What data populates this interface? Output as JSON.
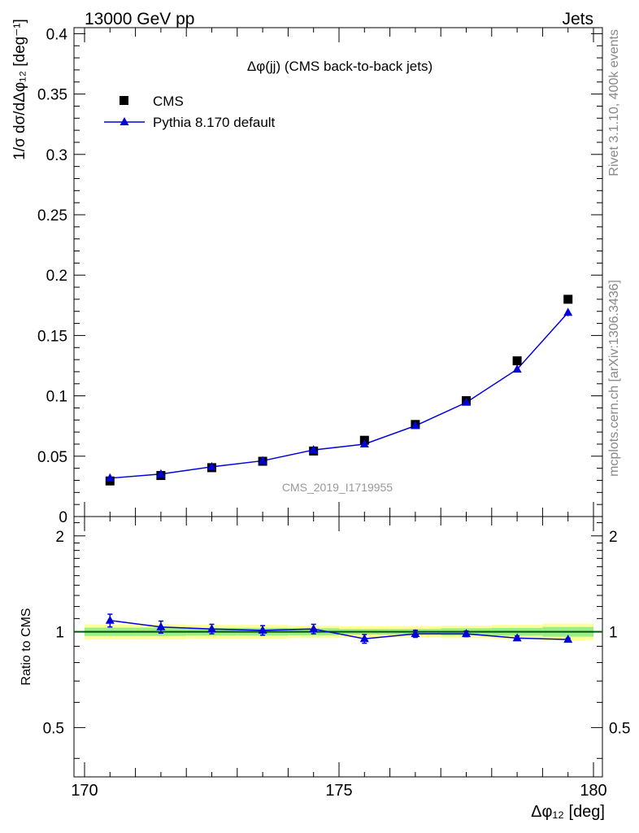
{
  "header": {
    "left": "13000 GeV pp",
    "right": "Jets"
  },
  "side": {
    "rivet": "Rivet 3.1.10,  400k events",
    "mcplots": "mcplots.cern.ch [arXiv:1306.3436]"
  },
  "watermark": "CMS_2019_I1719955",
  "colors": {
    "data": "#000000",
    "mc": "#0000dd",
    "band_outer": "#ffff99",
    "band_inner": "#99ee88",
    "ref_line": "#005500"
  },
  "chart_data": [
    {
      "type": "scatter",
      "title": "Δφ(jj) (CMS back-to-back jets)",
      "ylabel": "1/σ dσ/dΔφ₁₂ [deg⁻¹]",
      "xlabel": "Δφ₁₂ [deg]",
      "xlim": [
        170,
        180
      ],
      "ylim": [
        0,
        0.405
      ],
      "y_ticks": [
        "0",
        "0.05",
        "0.1",
        "0.15",
        "0.2",
        "0.25",
        "0.3",
        "0.35",
        "0.4"
      ],
      "x": [
        170.5,
        171.5,
        172.5,
        173.5,
        174.5,
        175.5,
        176.5,
        177.5,
        178.5,
        179.5
      ],
      "legend": [
        "CMS",
        "Pythia 8.170 default"
      ],
      "series": [
        {
          "name": "CMS",
          "marker": "square",
          "values": [
            0.0295,
            0.034,
            0.0405,
            0.0458,
            0.0543,
            0.0632,
            0.0763,
            0.096,
            0.129,
            0.18
          ]
        },
        {
          "name": "Pythia 8.170 default",
          "marker": "triangle",
          "values": [
            0.0318,
            0.0352,
            0.0412,
            0.0462,
            0.0552,
            0.06,
            0.0752,
            0.0945,
            0.122,
            0.169
          ],
          "errors": [
            0.0015,
            0.0012,
            0.001,
            0.0012,
            0.0012,
            0.001,
            0.0012,
            0.0013,
            0.002,
            0.003
          ]
        }
      ]
    },
    {
      "type": "line",
      "ylabel": "Ratio to CMS",
      "xlabel": "Δφ₁₂ [deg]",
      "xlim": [
        170,
        180
      ],
      "ylim": [
        0.35,
        2.3
      ],
      "y_scale": "log",
      "y_ticks": [
        "0.5",
        "1",
        "2"
      ],
      "x_ticks": [
        "170",
        "175",
        "180"
      ],
      "x": [
        170.5,
        171.5,
        172.5,
        173.5,
        174.5,
        175.5,
        176.5,
        177.5,
        178.5,
        179.5
      ],
      "series": [
        {
          "name": "Pythia 8.170 default",
          "values": [
            1.085,
            1.035,
            1.02,
            1.01,
            1.02,
            0.95,
            0.985,
            0.985,
            0.955,
            0.945
          ],
          "errors": [
            0.05,
            0.045,
            0.035,
            0.035,
            0.035,
            0.03,
            0.025,
            0.02,
            0.015,
            0.01
          ]
        }
      ],
      "band_outer": [
        0.055,
        0.055,
        0.05,
        0.05,
        0.045,
        0.04,
        0.04,
        0.045,
        0.05,
        0.06
      ],
      "band_inner": [
        0.03,
        0.03,
        0.028,
        0.028,
        0.025,
        0.02,
        0.02,
        0.025,
        0.028,
        0.035
      ]
    }
  ]
}
